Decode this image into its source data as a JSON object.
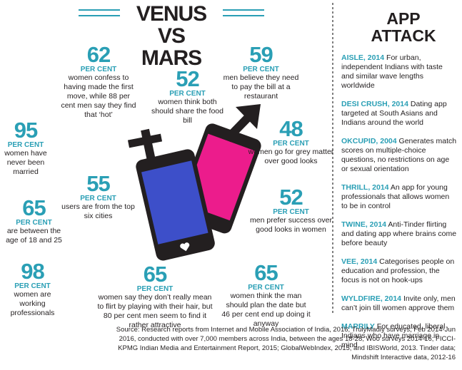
{
  "header": {
    "title": [
      "VENUS VS",
      "MARS"
    ]
  },
  "stats": [
    {
      "value": "62",
      "unit": "PER CENT",
      "text": "women confess to having made the first move, while 88 per cent men say they find that ‘hot’"
    },
    {
      "value": "59",
      "unit": "PER CENT",
      "text": "men believe they need to pay the bill at a restaurant"
    },
    {
      "value": "52",
      "unit": "PER CENT",
      "text": "women think both should share the food bill"
    },
    {
      "value": "95",
      "unit": "PER CENT",
      "text": "women have never been married"
    },
    {
      "value": "48",
      "unit": "PER CENT",
      "text": "women go for grey matter over good looks"
    },
    {
      "value": "55",
      "unit": "PER CENT",
      "text": "users are from the top six cities"
    },
    {
      "value": "65",
      "unit": "PER CENT",
      "text": "are between the age of 18 and 25"
    },
    {
      "value": "52",
      "unit": "PER CENT",
      "text": "men prefer success over good looks in women"
    },
    {
      "value": "98",
      "unit": "PER CENT",
      "text": "women are working professionals"
    },
    {
      "value": "65",
      "unit": "PER CENT",
      "text": "women say they don’t really mean to flirt by playing with their hair, but 80 per cent men seem to find it rather attractive"
    },
    {
      "value": "65",
      "unit": "PER CENT",
      "text": "women think the man should plan the date but 46 per cent end up doing it anyway"
    }
  ],
  "sidebar": {
    "title": [
      "APP",
      "ATTACK"
    ],
    "apps": [
      {
        "name": "AISLE, 2014",
        "description": "For urban, independent Indians with taste and similar wave lengths worldwide"
      },
      {
        "name": "DESI CRUSH, 2014",
        "description": "Dating app targeted at South Asians and Indians around the world"
      },
      {
        "name": "OKCUPID, 2004",
        "description": "Generates match scores on multiple-choice questions, no restrictions on age or sexual orientation"
      },
      {
        "name": "THRILL, 2014",
        "description": "An app for young professionals that allows women to be in control"
      },
      {
        "name": "TWINE, 2014",
        "description": "Anti-Tinder flirting and dating app where brains come before beauty"
      },
      {
        "name": "VEE, 2014",
        "description": "Categorises people on education and profession, the focus is not on hook-ups"
      },
      {
        "name": "WYLDFIRE, 2014",
        "description": "Invite only, men can’t join till women approve them"
      },
      {
        "name": "MARRILY",
        "description": "For educated, liberal Indians who have marriage in mind"
      }
    ]
  },
  "source": "Source: Research reports from Internet and Mobile Association of India, 2016; TrulyMadly surveys, Feb 2014-Jun 2016, conducted with over 7,000 members across India, between the ages 18-28; Woo surveys 2014-16; FICCI-KPMG Indian Media and Entertainment Report, 2015; GlobalWebIndex, 2015; and IBISWorld, 2013. Tinder data; Mindshift Interactive data, 2012-16"
}
